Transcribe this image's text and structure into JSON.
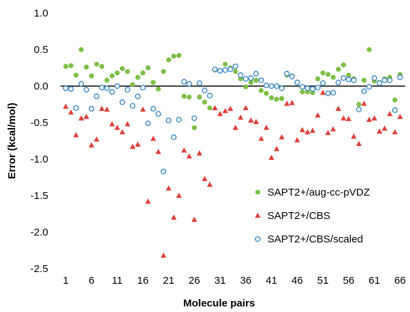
{
  "chart_data": {
    "type": "scatter",
    "title": "",
    "xlabel": "Molecule pairs",
    "ylabel": "Error (kcal/mol)",
    "xlim": [
      0,
      67
    ],
    "ylim": [
      -2.5,
      1.0
    ],
    "x_ticks": [
      1,
      6,
      11,
      16,
      21,
      26,
      31,
      36,
      41,
      46,
      51,
      56,
      61,
      66
    ],
    "y_ticks": [
      1.0,
      0.5,
      0.0,
      -0.5,
      -1.0,
      -1.5,
      -2.0,
      -2.5
    ],
    "y_tick_labels": [
      "1.0",
      "0.5",
      "0.0",
      "-0.5",
      "-1.0",
      "-1.5",
      "-2.0",
      "-2.5"
    ],
    "zero_line": true,
    "grid": false,
    "legend_position": "lower-right",
    "series": [
      {
        "name": "SAPT2+/aug-cc-pVDZ",
        "marker": "circle-filled",
        "color": "#7ebf45",
        "x": [
          1,
          2,
          3,
          4,
          5,
          6,
          7,
          8,
          9,
          10,
          11,
          12,
          13,
          14,
          15,
          16,
          17,
          18,
          19,
          20,
          21,
          22,
          23,
          24,
          25,
          26,
          27,
          28,
          29,
          30,
          31,
          32,
          33,
          34,
          35,
          36,
          37,
          38,
          39,
          40,
          41,
          42,
          43,
          44,
          45,
          46,
          47,
          48,
          49,
          50,
          51,
          52,
          53,
          54,
          55,
          56,
          57,
          58,
          59,
          60,
          61,
          62,
          63,
          64,
          65,
          66
        ],
        "values": [
          0.27,
          0.28,
          0.15,
          0.5,
          0.26,
          0.14,
          0.3,
          0.27,
          0.08,
          0.14,
          0.18,
          0.24,
          0.2,
          0.02,
          0.12,
          0.18,
          0.25,
          0.05,
          -0.04,
          0.2,
          0.36,
          0.41,
          0.42,
          -0.14,
          -0.15,
          -0.57,
          -0.15,
          -0.22,
          -0.3,
          0.22,
          0.21,
          0.3,
          0.25,
          0.2,
          0.1,
          -0.01,
          0.05,
          0.08,
          -0.06,
          -0.1,
          -0.16,
          -0.18,
          -0.17,
          0.15,
          0.14,
          0.05,
          -0.08,
          -0.08,
          -0.09,
          0.1,
          0.18,
          0.16,
          0.12,
          0.23,
          0.29,
          0.15,
          0.1,
          -0.25,
          0.08,
          0.5,
          0.07,
          0.05,
          0.1,
          0.12,
          -0.19,
          0.16
        ]
      },
      {
        "name": "SAPT2+/CBS",
        "marker": "triangle-filled",
        "color": "#e0403c",
        "x": [
          1,
          2,
          3,
          4,
          5,
          6,
          7,
          8,
          9,
          10,
          11,
          12,
          13,
          14,
          15,
          16,
          17,
          18,
          19,
          20,
          21,
          22,
          23,
          24,
          25,
          26,
          27,
          28,
          29,
          30,
          31,
          32,
          33,
          34,
          35,
          36,
          37,
          38,
          39,
          40,
          41,
          42,
          43,
          44,
          45,
          46,
          47,
          48,
          49,
          50,
          51,
          52,
          53,
          54,
          55,
          56,
          57,
          58,
          59,
          60,
          61,
          62,
          63,
          64,
          65,
          66
        ],
        "values": [
          -0.28,
          -0.36,
          -0.67,
          -0.44,
          -0.42,
          -0.81,
          -0.73,
          -0.31,
          -0.32,
          -0.52,
          -0.57,
          -0.63,
          -0.52,
          -0.83,
          -0.8,
          -0.32,
          -1.58,
          -0.72,
          -0.9,
          -2.32,
          -1.4,
          -1.8,
          -1.5,
          -0.88,
          -0.96,
          -1.83,
          -0.92,
          -1.27,
          -1.35,
          -0.3,
          -0.38,
          -0.34,
          -0.31,
          -0.57,
          -0.43,
          -0.3,
          -0.47,
          -0.49,
          -0.72,
          -0.57,
          -0.98,
          -0.86,
          -0.7,
          -0.24,
          -0.23,
          -0.74,
          -0.6,
          -0.63,
          -0.61,
          -0.4,
          -0.09,
          -0.64,
          -0.59,
          -0.31,
          -0.44,
          -0.45,
          -0.69,
          -0.79,
          -0.24,
          -0.46,
          -0.44,
          -0.62,
          -0.58,
          -0.38,
          -0.63,
          -0.42
        ]
      },
      {
        "name": "SAPT2+/CBS/scaled",
        "marker": "circle-open",
        "color": "#2e7fc6",
        "x": [
          1,
          2,
          3,
          4,
          5,
          6,
          7,
          8,
          9,
          10,
          11,
          12,
          13,
          14,
          15,
          16,
          17,
          18,
          19,
          20,
          21,
          22,
          23,
          24,
          25,
          26,
          27,
          28,
          29,
          30,
          31,
          32,
          33,
          34,
          35,
          36,
          37,
          38,
          39,
          40,
          41,
          42,
          43,
          44,
          45,
          46,
          47,
          48,
          49,
          50,
          51,
          52,
          53,
          54,
          55,
          56,
          57,
          58,
          59,
          60,
          61,
          62,
          63,
          64,
          65,
          66
        ],
        "values": [
          -0.03,
          -0.04,
          -0.3,
          0.03,
          -0.05,
          -0.31,
          -0.14,
          -0.02,
          -0.03,
          -0.08,
          0.0,
          -0.22,
          -0.05,
          -0.27,
          -0.14,
          -0.02,
          -0.51,
          -0.31,
          -0.38,
          -1.17,
          -0.47,
          -0.7,
          -0.46,
          0.06,
          0.03,
          -0.44,
          0.04,
          -0.06,
          -0.13,
          0.23,
          0.21,
          0.22,
          0.23,
          0.27,
          0.15,
          0.1,
          0.11,
          0.17,
          0.08,
          0.01,
          0.0,
          0.0,
          -0.03,
          0.17,
          0.13,
          0.05,
          -0.01,
          -0.03,
          -0.04,
          -0.02,
          0.04,
          -0.1,
          -0.09,
          0.05,
          0.11,
          0.09,
          0.08,
          -0.32,
          -0.07,
          -0.01,
          0.11,
          0.04,
          0.08,
          0.08,
          -0.33,
          0.12
        ]
      }
    ]
  }
}
